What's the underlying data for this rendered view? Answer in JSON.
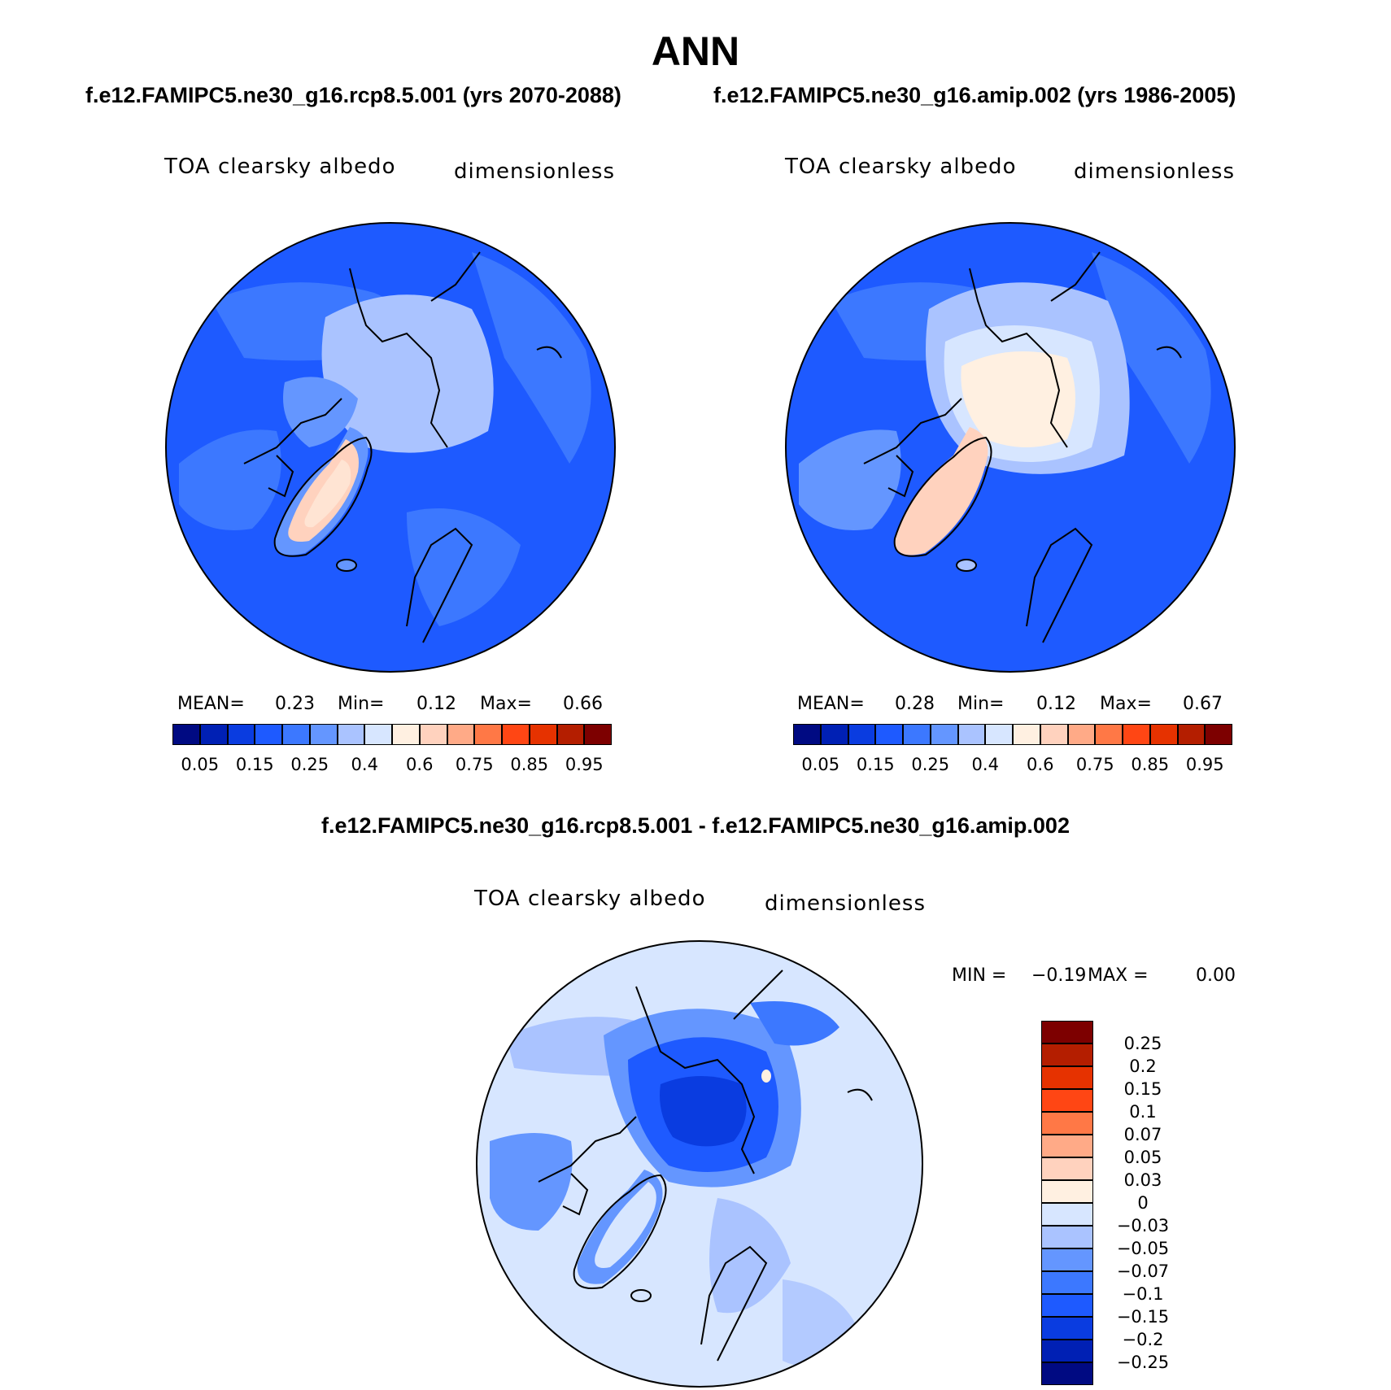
{
  "title": "ANN",
  "case_left": "f.e12.FAMIPC5.ne30_g16.rcp8.5.001 (yrs 2070-2088)",
  "case_right": "f.e12.FAMIPC5.ne30_g16.amip.002 (yrs 1986-2005)",
  "diff_title": "f.e12.FAMIPC5.ne30_g16.rcp8.5.001 - f.e12.FAMIPC5.ne30_g16.amip.002",
  "panels": [
    {
      "variable": "TOA clearsky albedo",
      "units": "dimensionless",
      "stats": {
        "mean_label": "MEAN=",
        "mean": "0.23",
        "min_label": "Min=",
        "min": "0.12",
        "max_label": "Max=",
        "max": "0.66"
      }
    },
    {
      "variable": "TOA clearsky albedo",
      "units": "dimensionless",
      "stats": {
        "mean_label": "MEAN=",
        "mean": "0.28",
        "min_label": "Min=",
        "min": "0.12",
        "max_label": "Max=",
        "max": "0.67"
      }
    }
  ],
  "abs_colorbar": {
    "colors": [
      "#000a82",
      "#0020b4",
      "#0a3ce0",
      "#1e5aff",
      "#3c78ff",
      "#6496ff",
      "#aac3ff",
      "#d7e6ff",
      "#fff0e1",
      "#ffd2be",
      "#ffaa87",
      "#ff7846",
      "#ff4614",
      "#e63200",
      "#b41e00",
      "#7d0000"
    ],
    "labels": [
      "0.05",
      "0.15",
      "0.25",
      "0.4",
      "0.6",
      "0.75",
      "0.85",
      "0.95"
    ]
  },
  "diff_panel": {
    "variable": "TOA clearsky albedo",
    "units": "dimensionless",
    "min_label": "MIN =",
    "min": "−0.19",
    "max_label": "MAX =",
    "max": "0.00"
  },
  "diff_colorbar": {
    "colors": [
      "#7d0000",
      "#b41e00",
      "#e63200",
      "#ff4614",
      "#ff7846",
      "#ffaa87",
      "#ffd2be",
      "#fff0e1",
      "#d7e6ff",
      "#aac3ff",
      "#6496ff",
      "#3c78ff",
      "#1e5aff",
      "#0a3ce0",
      "#0020b4",
      "#000a82"
    ],
    "labels": [
      "0.25",
      "0.2",
      "0.15",
      "0.1",
      "0.07",
      "0.05",
      "0.03",
      "0",
      "−0.03",
      "−0.05",
      "−0.07",
      "−0.1",
      "−0.15",
      "−0.2",
      "−0.25"
    ]
  }
}
